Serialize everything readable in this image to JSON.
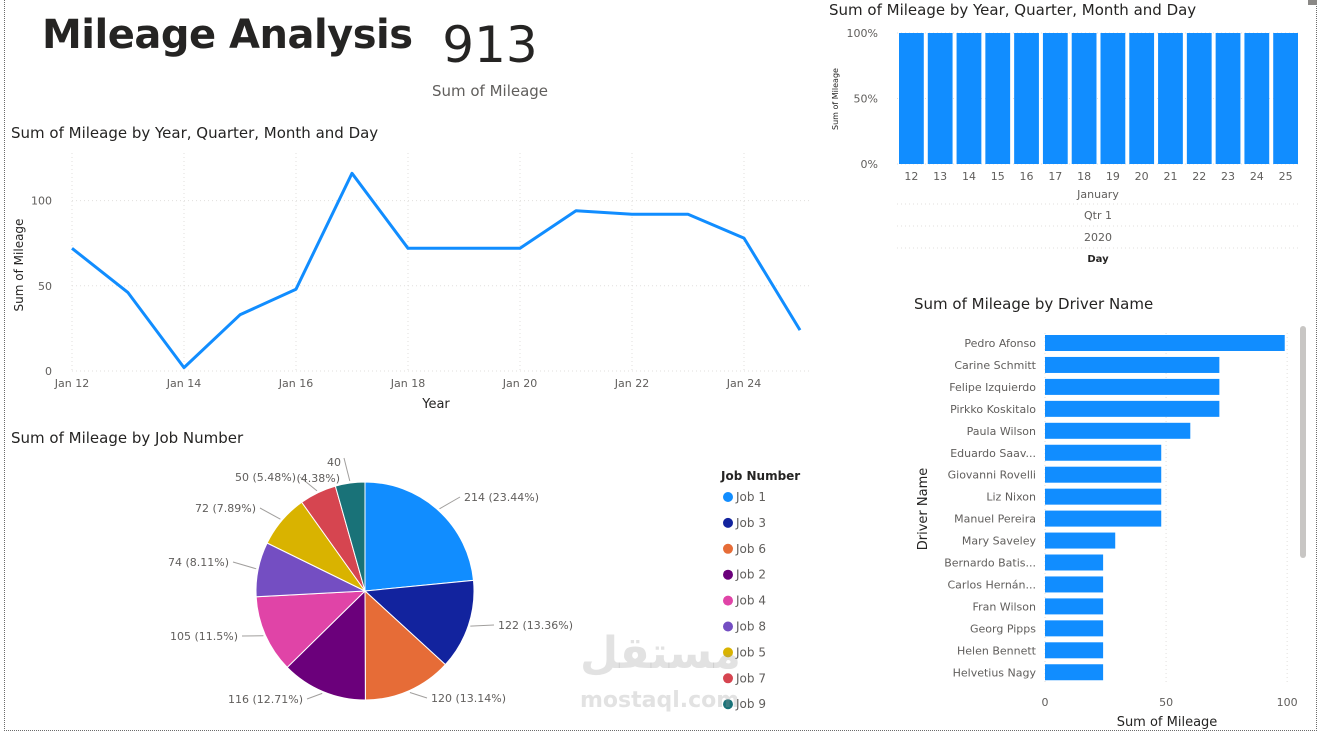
{
  "page": {
    "title": "Mileage Analysis",
    "kpi": {
      "value": "913",
      "label": "Sum of Mileage"
    },
    "watermark": {
      "arabic": "مستقل",
      "latin": "mostaql.com"
    }
  },
  "colors": {
    "accent": "#118DFF",
    "text": "#252423",
    "muted": "#605E5C",
    "grid": "#E1DFDD"
  },
  "chart_data": [
    {
      "id": "line",
      "type": "line",
      "title": "Sum of Mileage by Year, Quarter, Month and Day",
      "xlabel": "Year",
      "ylabel": "Sum of Mileage",
      "x": [
        12,
        13,
        14,
        15,
        16,
        17,
        18,
        19,
        20,
        21,
        22,
        23,
        24,
        25
      ],
      "x_tick_values": [
        12,
        14,
        16,
        18,
        20,
        22,
        24
      ],
      "x_tick_labels": [
        "Jan 12",
        "Jan 14",
        "Jan 16",
        "Jan 18",
        "Jan 20",
        "Jan 22",
        "Jan 24"
      ],
      "y_ticks": [
        0,
        50,
        100
      ],
      "ylim": [
        0,
        125
      ],
      "values": [
        72,
        46,
        2,
        33,
        48,
        116,
        72,
        72,
        72,
        94,
        92,
        92,
        78,
        24
      ],
      "grid": true,
      "color": "#118DFF"
    },
    {
      "id": "stacked100",
      "type": "bar",
      "title": "Sum of Mileage by Year, Quarter, Month and Day",
      "ylabel": "Sum of Mileage",
      "xlabel": "Day",
      "categories": [
        "12",
        "13",
        "14",
        "15",
        "16",
        "17",
        "18",
        "19",
        "20",
        "21",
        "22",
        "23",
        "24",
        "25"
      ],
      "values": [
        100,
        100,
        100,
        100,
        100,
        100,
        100,
        100,
        100,
        100,
        100,
        100,
        100,
        100
      ],
      "y_ticks": [
        "0%",
        "50%",
        "100%"
      ],
      "ylim": [
        0,
        100
      ],
      "hierarchy": {
        "month": "January",
        "quarter": "Qtr 1",
        "year": "2020"
      },
      "grid": true,
      "color": "#118DFF"
    },
    {
      "id": "pie",
      "type": "pie",
      "title": "Sum of Mileage by Job Number",
      "legend_title": "Job Number",
      "legend_position": "right",
      "slices": [
        {
          "name": "Job 1",
          "value": 214,
          "label": "214 (23.44%)",
          "color": "#118DFF"
        },
        {
          "name": "Job 3",
          "value": 122,
          "label": "122 (13.36%)",
          "color": "#12239E"
        },
        {
          "name": "Job 6",
          "value": 120,
          "label": "120 (13.14%)",
          "color": "#E66C37"
        },
        {
          "name": "Job 2",
          "value": 116,
          "label": "116 (12.71%)",
          "color": "#6B007B"
        },
        {
          "name": "Job 4",
          "value": 105,
          "label": "105 (11.5%)",
          "color": "#E044A7"
        },
        {
          "name": "Job 8",
          "value": 74,
          "label": "74 (8.11%)",
          "color": "#744EC2"
        },
        {
          "name": "Job 5",
          "value": 72,
          "label": "72 (7.89%)",
          "color": "#D9B300"
        },
        {
          "name": "Job 7",
          "value": 50,
          "label": "50 (5.48%)",
          "color": "#D64550"
        },
        {
          "name": "Job 9",
          "value": 40,
          "label": "40 (4.38%)",
          "color": "#197278"
        }
      ]
    },
    {
      "id": "hbar",
      "type": "bar",
      "orientation": "horizontal",
      "title": "Sum of Mileage by Driver Name",
      "xlabel": "Sum of Mileage",
      "ylabel": "Driver Name",
      "categories": [
        "Pedro Afonso",
        "Carine Schmitt",
        "Felipe Izquierdo",
        "Pirkko Koskitalo",
        "Paula Wilson",
        "Eduardo Saav...",
        "Giovanni Rovelli",
        "Liz Nixon",
        "Manuel Pereira",
        "Mary Saveley",
        "Bernardo Batis...",
        "Carlos Hernán...",
        "Fran Wilson",
        "Georg Pipps",
        "Helen Bennett",
        "Helvetius Nagy"
      ],
      "values": [
        99,
        72,
        72,
        72,
        60,
        48,
        48,
        48,
        48,
        29,
        24,
        24,
        24,
        24,
        24,
        24
      ],
      "x_ticks": [
        0,
        50,
        100
      ],
      "xlim": [
        0,
        102
      ],
      "grid": true,
      "color": "#118DFF"
    }
  ]
}
